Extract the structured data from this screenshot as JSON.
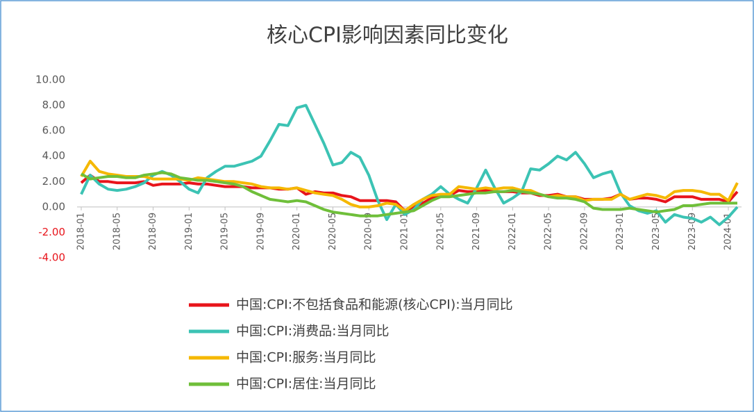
{
  "chart_data": {
    "type": "line",
    "title": "核心CPI影响因素同比变化",
    "categories": [
      "2018-01",
      null,
      null,
      null,
      "2018-05",
      null,
      null,
      null,
      "2018-09",
      null,
      null,
      null,
      "2019-01",
      null,
      null,
      null,
      "2019-05",
      null,
      null,
      null,
      "2019-09",
      null,
      null,
      null,
      "2020-01",
      null,
      null,
      null,
      "2020-05",
      null,
      null,
      null,
      "2020-09",
      null,
      null,
      null,
      "2021-01",
      null,
      null,
      null,
      "2021-05",
      null,
      null,
      null,
      "2021-09",
      null,
      null,
      null,
      "2022-01",
      null,
      null,
      null,
      "2022-05",
      null,
      null,
      null,
      "2022-09",
      null,
      null,
      null,
      "2023-01",
      null,
      null,
      null,
      "2023-05",
      null,
      null,
      null,
      "2023-09",
      null,
      null,
      null,
      "2024-01",
      null
    ],
    "series": [
      {
        "name": "中国:CPI:不包括食品和能源(核心CPI):当月同比",
        "color": "#e8141b",
        "values": [
          1.9,
          2.5,
          2.0,
          2.0,
          1.9,
          1.9,
          1.9,
          2.0,
          1.7,
          1.8,
          1.8,
          1.8,
          1.9,
          1.8,
          1.8,
          1.7,
          1.6,
          1.6,
          1.6,
          1.5,
          1.5,
          1.5,
          1.4,
          1.4,
          1.5,
          1.0,
          1.2,
          1.1,
          1.1,
          0.9,
          0.8,
          0.5,
          0.5,
          0.5,
          0.5,
          0.4,
          -0.3,
          0.0,
          0.3,
          0.7,
          0.9,
          0.9,
          1.3,
          1.2,
          1.2,
          1.3,
          1.2,
          1.2,
          1.2,
          1.1,
          1.1,
          0.9,
          0.9,
          1.0,
          0.8,
          0.8,
          0.6,
          0.6,
          0.6,
          0.7,
          1.0,
          0.6,
          0.7,
          0.7,
          0.6,
          0.4,
          0.8,
          0.8,
          0.8,
          0.6,
          0.6,
          0.6,
          0.4,
          1.2
        ]
      },
      {
        "name": "中国:CPI:消费品:当月同比",
        "color": "#3cc3b4",
        "values": [
          1.0,
          2.5,
          1.8,
          1.4,
          1.3,
          1.4,
          1.6,
          1.9,
          2.5,
          2.8,
          2.5,
          2.0,
          1.4,
          1.1,
          2.3,
          2.8,
          3.2,
          3.2,
          3.4,
          3.6,
          4.0,
          5.2,
          6.5,
          6.4,
          7.8,
          8.0,
          6.5,
          5.0,
          3.3,
          3.5,
          4.3,
          3.9,
          2.5,
          0.5,
          -1.0,
          0.2,
          -0.6,
          -0.2,
          0.6,
          1.0,
          1.6,
          1.0,
          0.6,
          0.3,
          1.5,
          2.9,
          1.5,
          0.3,
          0.7,
          1.2,
          3.0,
          2.9,
          3.4,
          4.0,
          3.7,
          4.3,
          3.4,
          2.3,
          2.6,
          2.8,
          1.1,
          0.1,
          -0.3,
          -0.5,
          -0.3,
          -1.2,
          -0.6,
          -0.8,
          -0.9,
          -1.2,
          -0.8,
          -1.4,
          -0.8,
          0.0
        ]
      },
      {
        "name": "中国:CPI:服务:当月同比",
        "color": "#f5b800",
        "values": [
          2.4,
          3.6,
          2.8,
          2.6,
          2.5,
          2.4,
          2.4,
          2.4,
          2.2,
          2.2,
          2.2,
          2.2,
          2.1,
          2.3,
          2.2,
          2.1,
          2.0,
          2.0,
          1.9,
          1.8,
          1.6,
          1.5,
          1.5,
          1.4,
          1.5,
          1.3,
          1.1,
          1.0,
          0.9,
          0.6,
          0.2,
          0.0,
          0.0,
          0.1,
          0.3,
          0.2,
          -0.3,
          0.2,
          0.6,
          0.9,
          1.0,
          1.0,
          1.6,
          1.5,
          1.4,
          1.5,
          1.4,
          1.5,
          1.5,
          1.3,
          1.3,
          1.0,
          0.8,
          0.9,
          0.8,
          0.8,
          0.5,
          0.6,
          0.6,
          0.6,
          1.0,
          0.6,
          0.8,
          1.0,
          0.9,
          0.7,
          1.2,
          1.3,
          1.3,
          1.2,
          1.0,
          1.0,
          0.5,
          1.9
        ]
      },
      {
        "name": "中国:CPI:居住:当月同比",
        "color": "#6fbf3a",
        "values": [
          2.6,
          2.2,
          2.3,
          2.4,
          2.4,
          2.3,
          2.3,
          2.5,
          2.6,
          2.7,
          2.6,
          2.3,
          2.2,
          2.1,
          2.1,
          2.0,
          1.9,
          1.8,
          1.6,
          1.2,
          0.9,
          0.6,
          0.5,
          0.4,
          0.5,
          0.4,
          0.1,
          -0.2,
          -0.4,
          -0.5,
          -0.6,
          -0.7,
          -0.7,
          -0.7,
          -0.6,
          -0.5,
          -0.4,
          -0.3,
          0.1,
          0.5,
          0.8,
          0.8,
          0.9,
          1.0,
          1.1,
          1.1,
          1.2,
          1.2,
          1.3,
          1.2,
          1.1,
          1.0,
          0.8,
          0.7,
          0.7,
          0.6,
          0.4,
          -0.1,
          -0.2,
          -0.2,
          -0.2,
          -0.1,
          -0.2,
          -0.3,
          -0.4,
          -0.3,
          -0.2,
          0.1,
          0.1,
          0.2,
          0.3,
          0.3,
          0.3,
          0.3
        ]
      }
    ],
    "ylim": [
      -4,
      10
    ],
    "yticks": [
      {
        "value": 10,
        "label": "10.00"
      },
      {
        "value": 8,
        "label": "8.00"
      },
      {
        "value": 6,
        "label": "6.00"
      },
      {
        "value": 4,
        "label": "4.00"
      },
      {
        "value": 2,
        "label": "2.00"
      },
      {
        "value": 0,
        "label": "0.00"
      },
      {
        "value": -2,
        "label": "-2.00"
      },
      {
        "value": -4,
        "label": "-4.00"
      }
    ],
    "grid": false,
    "legend": "bottom"
  }
}
